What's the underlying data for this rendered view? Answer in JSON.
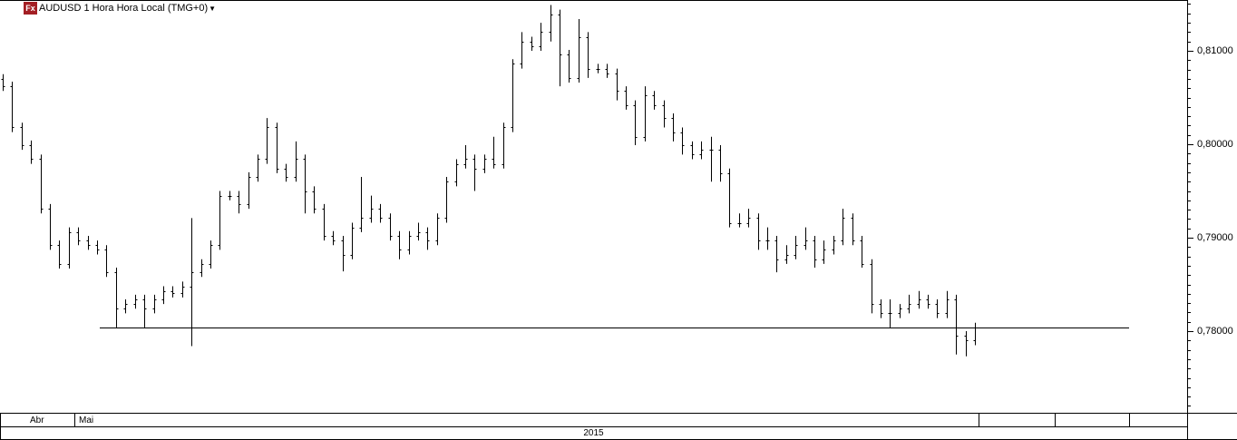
{
  "header": {
    "logo": "Fx",
    "title": "AUDUSD 1 Hora Hora Local (TMG+0)",
    "dropdown_icon": "caret-down-icon"
  },
  "chart_data": {
    "type": "ohlc",
    "title": "AUDUSD 1 Hora Hora Local (TMG+0)",
    "ylim": [
      0.771,
      0.8154
    ],
    "y_ticks": [
      "0,81000",
      "0,80000",
      "0,79000",
      "0,78000"
    ],
    "y_tick_values": [
      0.81,
      0.8,
      0.79,
      0.78
    ],
    "x_tick_labels": [
      "Abr",
      "Mai"
    ],
    "x_year_label": "2015",
    "horizontal_line": 0.7804,
    "bar_color": "#000000",
    "bars": [
      [
        0.807,
        0.8075,
        0.8057,
        0.8062
      ],
      [
        0.8062,
        0.8067,
        0.8013,
        0.8018
      ],
      [
        0.8018,
        0.8023,
        0.7994,
        0.7999
      ],
      [
        0.7999,
        0.8004,
        0.7979,
        0.7984
      ],
      [
        0.7984,
        0.7989,
        0.7926,
        0.7931
      ],
      [
        0.7931,
        0.7936,
        0.7887,
        0.7892
      ],
      [
        0.7892,
        0.7897,
        0.7867,
        0.7872
      ],
      [
        0.7872,
        0.7911,
        0.7867,
        0.7906
      ],
      [
        0.7906,
        0.7911,
        0.7892,
        0.7897
      ],
      [
        0.7897,
        0.7902,
        0.7887,
        0.7892
      ],
      [
        0.7892,
        0.7897,
        0.7882,
        0.7887
      ],
      [
        0.7887,
        0.7892,
        0.7858,
        0.7863
      ],
      [
        0.7863,
        0.7868,
        0.7804,
        0.7824
      ],
      [
        0.7824,
        0.7834,
        0.7819,
        0.7829
      ],
      [
        0.7829,
        0.7839,
        0.7824,
        0.7834
      ],
      [
        0.7834,
        0.7839,
        0.7804,
        0.7824
      ],
      [
        0.7824,
        0.7839,
        0.7819,
        0.7834
      ],
      [
        0.7834,
        0.7848,
        0.7829,
        0.7843
      ],
      [
        0.7843,
        0.7848,
        0.7836,
        0.7841
      ],
      [
        0.7841,
        0.7853,
        0.7836,
        0.7848
      ],
      [
        0.7848,
        0.7921,
        0.7784,
        0.7863
      ],
      [
        0.7863,
        0.7877,
        0.7858,
        0.7872
      ],
      [
        0.7872,
        0.7897,
        0.7867,
        0.7892
      ],
      [
        0.7892,
        0.795,
        0.7887,
        0.7945
      ],
      [
        0.7945,
        0.795,
        0.794,
        0.7945
      ],
      [
        0.7945,
        0.795,
        0.7926,
        0.7936
      ],
      [
        0.7936,
        0.797,
        0.7931,
        0.7965
      ],
      [
        0.7965,
        0.7989,
        0.796,
        0.7984
      ],
      [
        0.7984,
        0.8028,
        0.7979,
        0.8018
      ],
      [
        0.8018,
        0.8023,
        0.7969,
        0.7974
      ],
      [
        0.7974,
        0.7979,
        0.796,
        0.7965
      ],
      [
        0.7965,
        0.8003,
        0.796,
        0.7984
      ],
      [
        0.7984,
        0.7989,
        0.7926,
        0.795
      ],
      [
        0.795,
        0.7955,
        0.7926,
        0.7931
      ],
      [
        0.7931,
        0.7936,
        0.7897,
        0.7902
      ],
      [
        0.7902,
        0.7907,
        0.7892,
        0.7897
      ],
      [
        0.7897,
        0.7902,
        0.7864,
        0.7882
      ],
      [
        0.7882,
        0.7916,
        0.7877,
        0.7911
      ],
      [
        0.7911,
        0.7965,
        0.7906,
        0.7921
      ],
      [
        0.7921,
        0.7945,
        0.7916,
        0.7931
      ],
      [
        0.7931,
        0.7936,
        0.7916,
        0.7921
      ],
      [
        0.7921,
        0.7926,
        0.7897,
        0.7902
      ],
      [
        0.7902,
        0.7907,
        0.7877,
        0.7887
      ],
      [
        0.7887,
        0.7907,
        0.7882,
        0.7902
      ],
      [
        0.7902,
        0.7916,
        0.7897,
        0.7906
      ],
      [
        0.7906,
        0.7911,
        0.7887,
        0.7897
      ],
      [
        0.7897,
        0.7926,
        0.7892,
        0.7921
      ],
      [
        0.7921,
        0.7965,
        0.7916,
        0.796
      ],
      [
        0.796,
        0.7984,
        0.7955,
        0.7979
      ],
      [
        0.7979,
        0.7999,
        0.7974,
        0.7984
      ],
      [
        0.7984,
        0.7989,
        0.795,
        0.7974
      ],
      [
        0.7974,
        0.7989,
        0.7969,
        0.7984
      ],
      [
        0.7984,
        0.8008,
        0.7974,
        0.7979
      ],
      [
        0.7979,
        0.8023,
        0.7974,
        0.8018
      ],
      [
        0.8018,
        0.8091,
        0.8013,
        0.8086
      ],
      [
        0.8086,
        0.812,
        0.8081,
        0.811
      ],
      [
        0.811,
        0.8115,
        0.81,
        0.8105
      ],
      [
        0.8105,
        0.813,
        0.81,
        0.812
      ],
      [
        0.812,
        0.8149,
        0.811,
        0.8139
      ],
      [
        0.8139,
        0.8144,
        0.8062,
        0.8096
      ],
      [
        0.8096,
        0.8101,
        0.8066,
        0.8071
      ],
      [
        0.8071,
        0.8134,
        0.8066,
        0.8115
      ],
      [
        0.8115,
        0.812,
        0.8071,
        0.8081
      ],
      [
        0.8081,
        0.8086,
        0.8076,
        0.8081
      ],
      [
        0.8081,
        0.8086,
        0.8071,
        0.8076
      ],
      [
        0.8076,
        0.8081,
        0.8047,
        0.8057
      ],
      [
        0.8057,
        0.8062,
        0.8037,
        0.8042
      ],
      [
        0.8042,
        0.8047,
        0.7999,
        0.8008
      ],
      [
        0.8008,
        0.8062,
        0.8003,
        0.8052
      ],
      [
        0.8052,
        0.8057,
        0.8037,
        0.8042
      ],
      [
        0.8042,
        0.8047,
        0.8018,
        0.8028
      ],
      [
        0.8028,
        0.8033,
        0.8003,
        0.8013
      ],
      [
        0.8013,
        0.8018,
        0.7989,
        0.7999
      ],
      [
        0.7999,
        0.8003,
        0.7984,
        0.7989
      ],
      [
        0.7989,
        0.8003,
        0.7984,
        0.7994
      ],
      [
        0.7994,
        0.8008,
        0.796,
        0.7994
      ],
      [
        0.7994,
        0.7999,
        0.796,
        0.7969
      ],
      [
        0.7969,
        0.7974,
        0.7911,
        0.7916
      ],
      [
        0.7916,
        0.7926,
        0.7911,
        0.7916
      ],
      [
        0.7916,
        0.7931,
        0.7911,
        0.7921
      ],
      [
        0.7921,
        0.7926,
        0.7887,
        0.7897
      ],
      [
        0.7897,
        0.7911,
        0.7887,
        0.7897
      ],
      [
        0.7897,
        0.7902,
        0.7863,
        0.7877
      ],
      [
        0.7877,
        0.7892,
        0.7872,
        0.7882
      ],
      [
        0.7882,
        0.7902,
        0.7877,
        0.7892
      ],
      [
        0.7892,
        0.7911,
        0.7887,
        0.7897
      ],
      [
        0.7897,
        0.7902,
        0.7868,
        0.7877
      ],
      [
        0.7877,
        0.7897,
        0.7872,
        0.7887
      ],
      [
        0.7887,
        0.7902,
        0.7882,
        0.7897
      ],
      [
        0.7897,
        0.7931,
        0.7892,
        0.7921
      ],
      [
        0.7921,
        0.7926,
        0.7892,
        0.7897
      ],
      [
        0.7897,
        0.7902,
        0.7868,
        0.7872
      ],
      [
        0.7872,
        0.7877,
        0.7819,
        0.7829
      ],
      [
        0.7829,
        0.7834,
        0.7814,
        0.7819
      ],
      [
        0.7819,
        0.7834,
        0.7804,
        0.7819
      ],
      [
        0.7819,
        0.7829,
        0.7814,
        0.7824
      ],
      [
        0.7824,
        0.7839,
        0.7819,
        0.7829
      ],
      [
        0.7829,
        0.7843,
        0.7824,
        0.7834
      ],
      [
        0.7834,
        0.7839,
        0.7824,
        0.7829
      ],
      [
        0.7829,
        0.7834,
        0.7814,
        0.7819
      ],
      [
        0.7819,
        0.7843,
        0.7814,
        0.7834
      ],
      [
        0.7834,
        0.7839,
        0.7775,
        0.7795
      ],
      [
        0.7795,
        0.78,
        0.7773,
        0.779
      ],
      [
        0.779,
        0.7809,
        0.7785,
        0.7804
      ]
    ]
  }
}
